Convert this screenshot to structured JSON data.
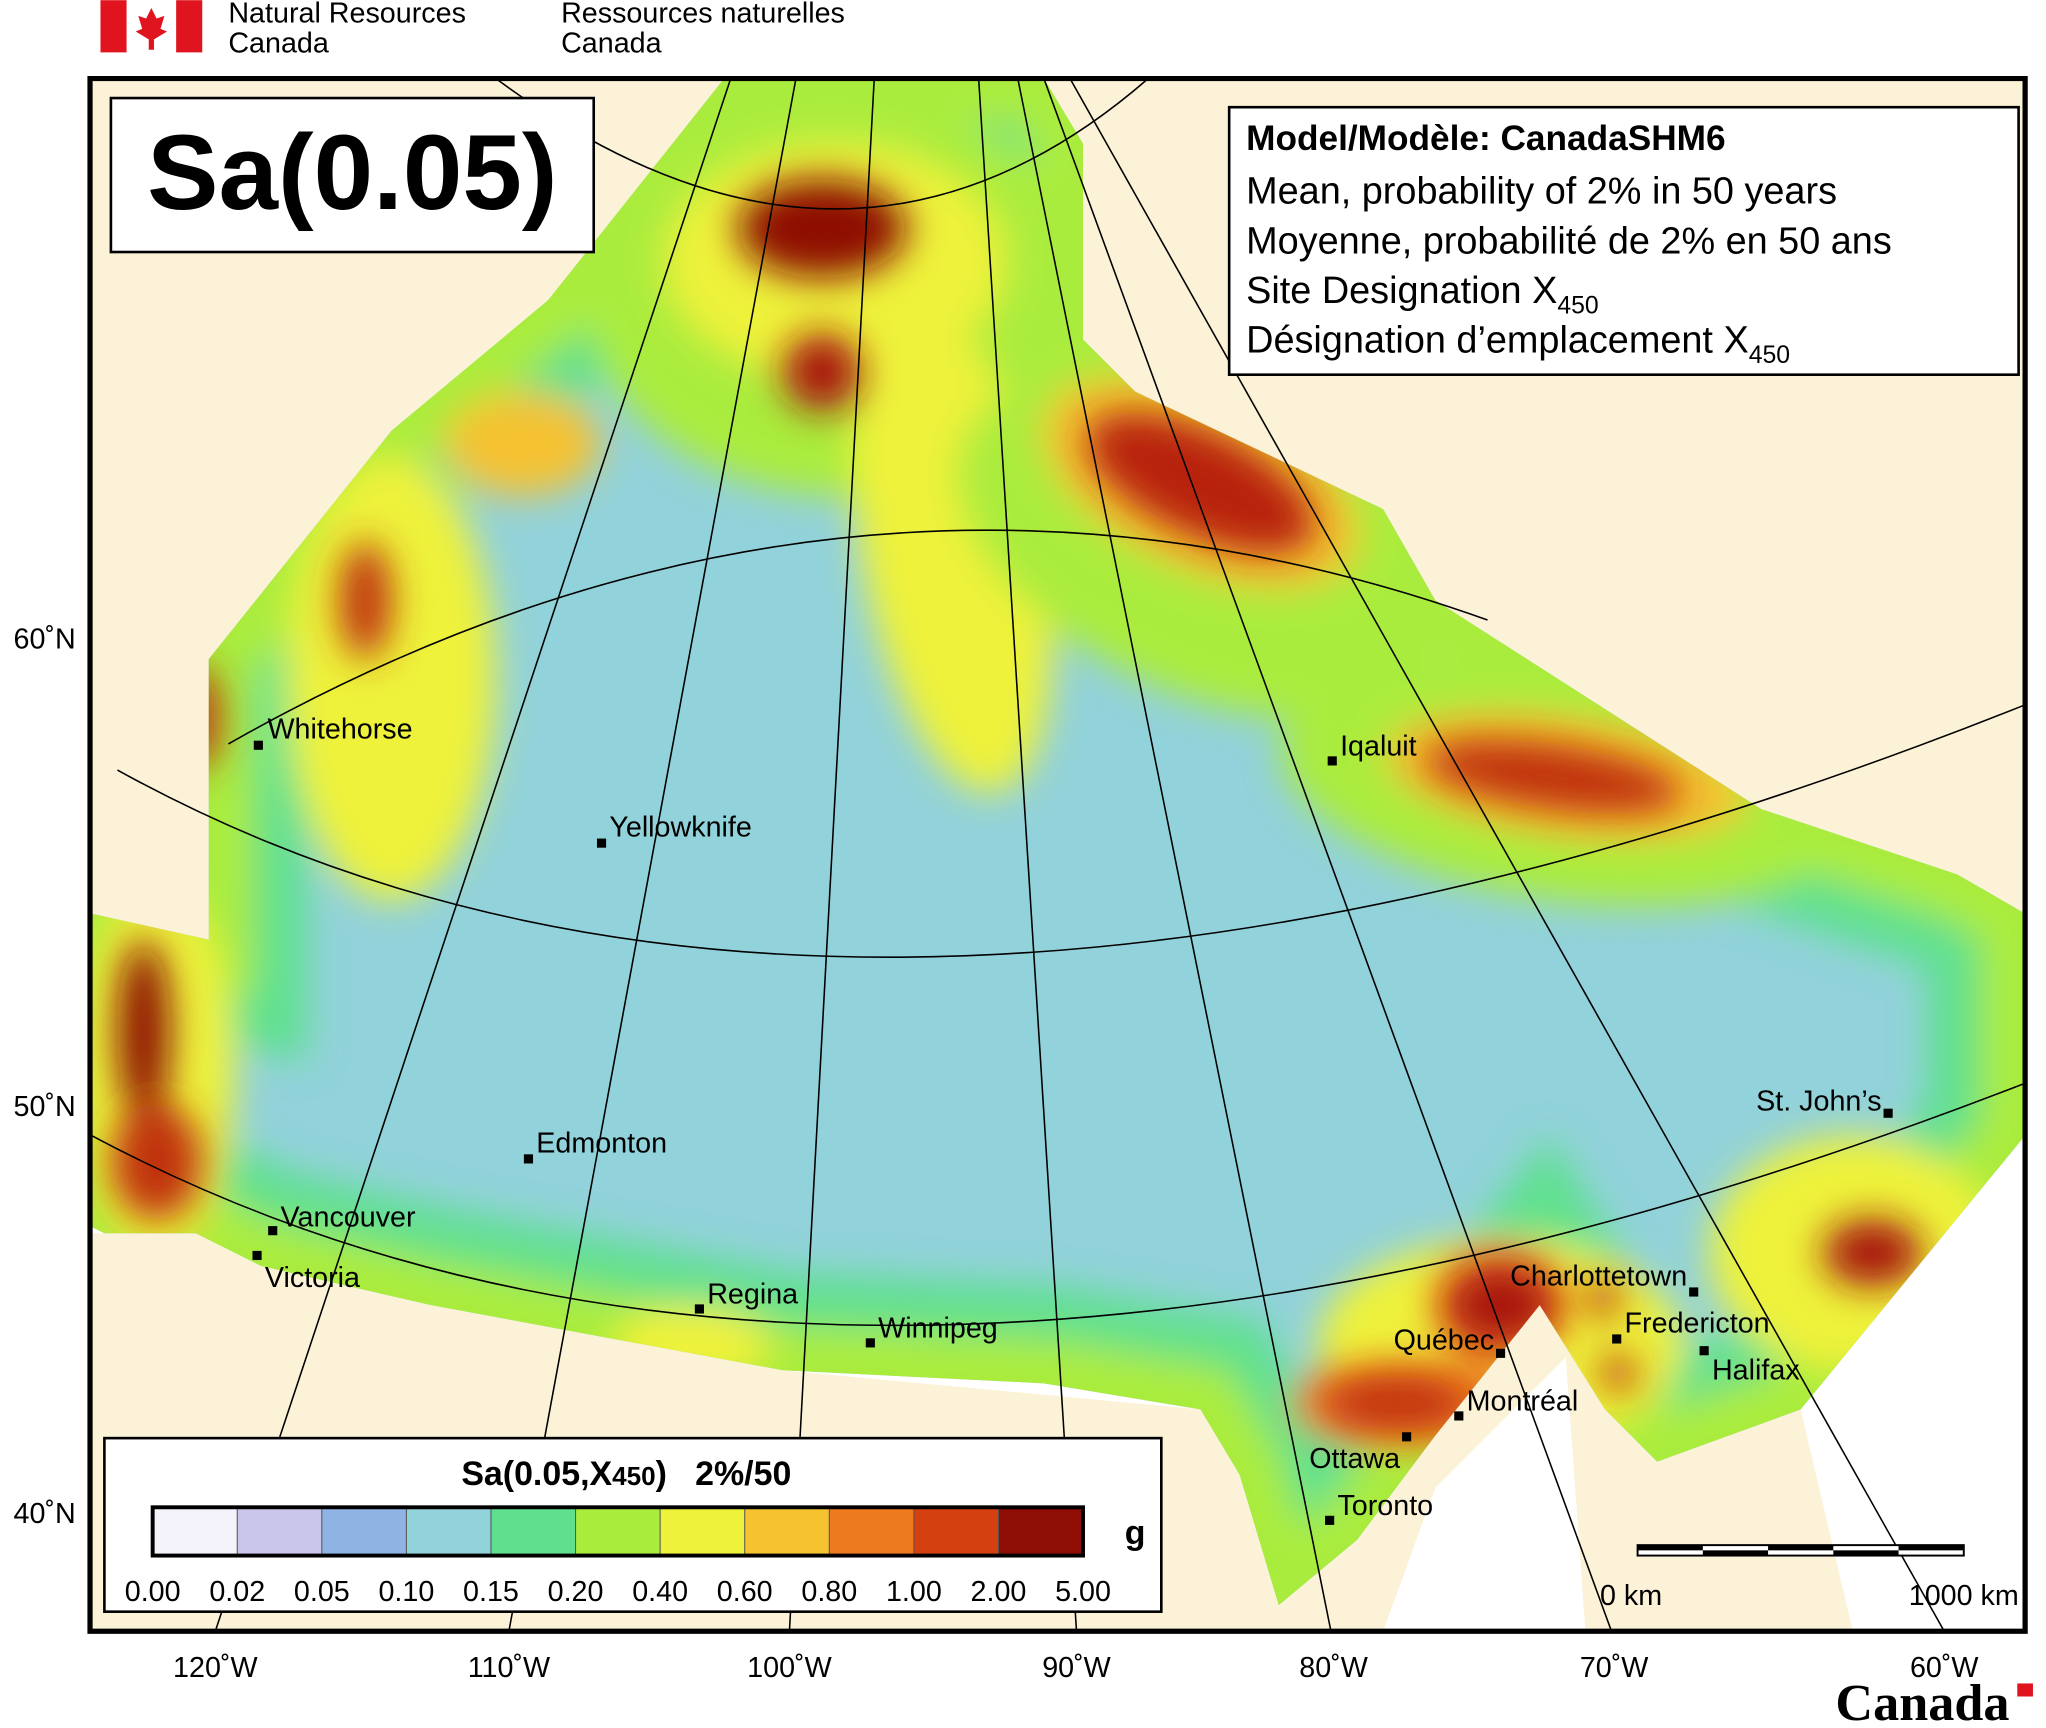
{
  "header": {
    "department_en": [
      "Natural Resources",
      "Canada"
    ],
    "department_fr": [
      "Ressources naturelles",
      "Canada"
    ]
  },
  "map": {
    "title": "Sa(0.05)",
    "info": {
      "model": "Model/Modèle: CanadaSHM6",
      "line_en": "Mean, probability of 2% in 50 years",
      "line_fr": "Moyenne, probabilité de 2% en 50 ans",
      "site_en": {
        "text": "Site Designation X",
        "subscript": "450"
      },
      "site_fr": {
        "text": "Désignation d’emplacement X",
        "subscript": "450"
      }
    },
    "cities": [
      "Whitehorse",
      "Yellowknife",
      "Edmonton",
      "Vancouver",
      "Victoria",
      "Regina",
      "Winnipeg",
      "Iqaluit",
      "St. John’s",
      "Charlottetown",
      "Fredericton",
      "Halifax",
      "Québec",
      "Montréal",
      "Ottawa",
      "Toronto"
    ],
    "latitude_labels": [
      "60˚N",
      "50˚N",
      "40˚N"
    ],
    "longitude_labels": [
      "120˚W",
      "110˚W",
      "100˚W",
      "90˚W",
      "80˚W",
      "70˚W",
      "60˚W"
    ],
    "scale_bar": [
      "0 km",
      "1000 km"
    ]
  },
  "legend": {
    "title": {
      "text": "Sa(0.05,X",
      "subscript": "450",
      "suffix": ")   2%/50"
    },
    "unit": "g",
    "ticks": [
      {
        "value": 0,
        "label": "0.00"
      },
      {
        "value": 0.02,
        "label": "0.02"
      },
      {
        "value": 0.05,
        "label": "0.05"
      },
      {
        "value": 0.1,
        "label": "0.10"
      },
      {
        "value": 0.15,
        "label": "0.15"
      },
      {
        "value": 0.2,
        "label": "0.20"
      },
      {
        "value": 0.4,
        "label": "0.40"
      },
      {
        "value": 0.6,
        "label": "0.60"
      },
      {
        "value": 0.8,
        "label": "0.80"
      },
      {
        "value": 1,
        "label": "1.00"
      },
      {
        "value": 2,
        "label": "2.00"
      },
      {
        "value": 5,
        "label": "5.00"
      }
    ],
    "colors": [
      "#f4f2fa",
      "#c9c6ea",
      "#8fb4e4",
      "#92d2da",
      "#5fe08f",
      "#aaec3c",
      "#eef23a",
      "#f5c230",
      "#ee7a20",
      "#d4400f",
      "#8e0e06"
    ]
  },
  "footer": {
    "wordmark": "Canada"
  }
}
